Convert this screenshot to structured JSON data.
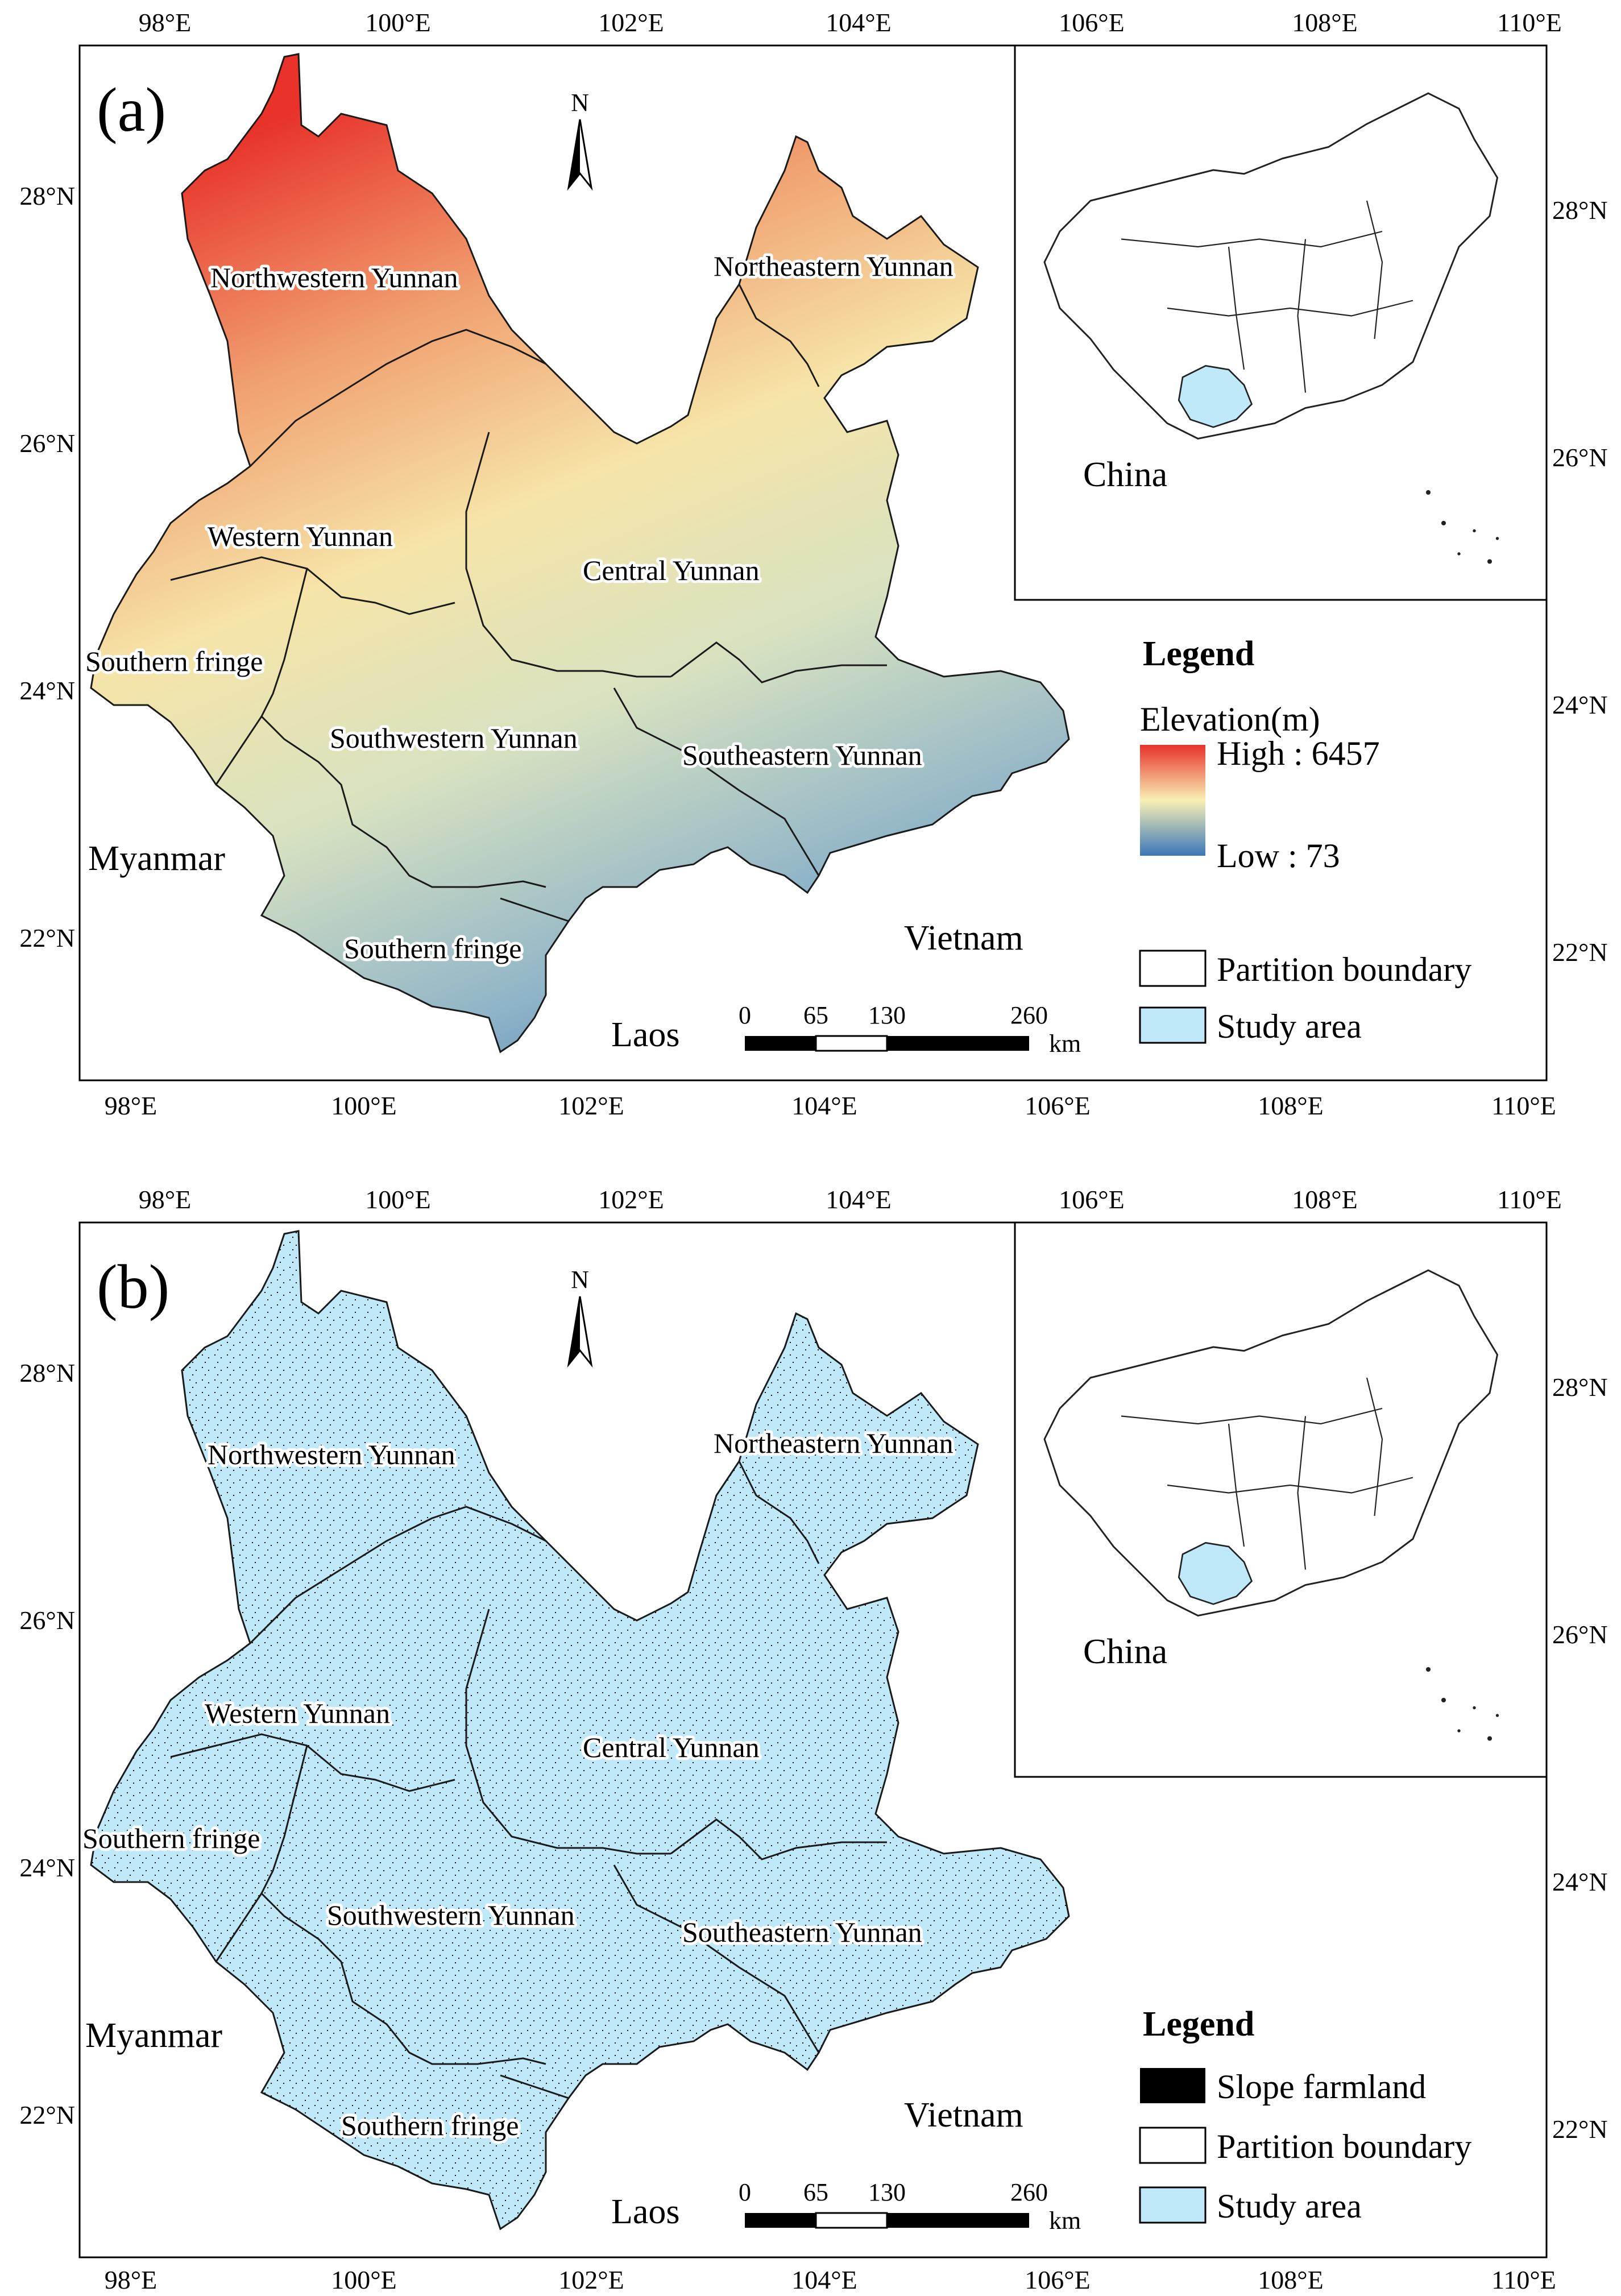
{
  "panels": [
    {
      "id": "a",
      "label": "(a)",
      "north_label": "N",
      "axis_top": [
        "98°E",
        "100°E",
        "102°E",
        "104°E",
        "106°E",
        "108°E",
        "110°E"
      ],
      "axis_bottom": [
        "98°E",
        "100°E",
        "102°E",
        "104°E",
        "106°E",
        "108°E",
        "110°E"
      ],
      "axis_left": [
        "28°N",
        "26°N",
        "24°N",
        "22°N"
      ],
      "axis_right": [
        "28°N",
        "26°N",
        "24°N",
        "22°N"
      ],
      "regions": {
        "northwestern": "Northwestern Yunnan",
        "northeastern": "Northeastern Yunnan",
        "western": "Western Yunnan",
        "central": "Central Yunnan",
        "southern_fringe_w": "Southern fringe",
        "southwestern": "Southwestern Yunnan",
        "southeastern": "Southeastern Yunnan",
        "southern_fringe_s": "Southern fringe"
      },
      "countries": {
        "myanmar": "Myanmar",
        "vietnam": "Vietnam",
        "laos": "Laos"
      },
      "inset_label": "China",
      "scale": {
        "ticks": [
          "0",
          "65",
          "130",
          "260"
        ],
        "unit": "km"
      },
      "legend": {
        "title": "Legend",
        "ramp_title": "Elevation(m)",
        "ramp_high": "High : 6457",
        "ramp_low": "Low : 73",
        "items": [
          {
            "label": "Partition boundary",
            "color": "#ffffff"
          },
          {
            "label": "Study area",
            "color": "#bfe8f8"
          }
        ]
      }
    },
    {
      "id": "b",
      "label": "(b)",
      "north_label": "N",
      "axis_top": [
        "98°E",
        "100°E",
        "102°E",
        "104°E",
        "106°E",
        "108°E",
        "110°E"
      ],
      "axis_bottom": [
        "98°E",
        "100°E",
        "102°E",
        "104°E",
        "106°E",
        "108°E",
        "110°E"
      ],
      "axis_left": [
        "28°N",
        "26°N",
        "24°N",
        "22°N"
      ],
      "axis_right": [
        "28°N",
        "26°N",
        "24°N",
        "22°N"
      ],
      "regions": {
        "northwestern": "Northwestern Yunnan",
        "northeastern": "Northeastern Yunnan",
        "western": "Western Yunnan",
        "central": "Central Yunnan",
        "southern_fringe_w": "Southern fringe",
        "southwestern": "Southwestern Yunnan",
        "southeastern": "Southeastern Yunnan",
        "southern_fringe_s": "Southern fringe"
      },
      "countries": {
        "myanmar": "Myanmar",
        "vietnam": "Vietnam",
        "laos": "Laos"
      },
      "inset_label": "China",
      "scale": {
        "ticks": [
          "0",
          "65",
          "130",
          "260"
        ],
        "unit": "km"
      },
      "legend": {
        "title": "Legend",
        "items": [
          {
            "label": "Slope farmland",
            "color": "#000000"
          },
          {
            "label": "Partition boundary",
            "color": "#ffffff"
          },
          {
            "label": "Study area",
            "color": "#bfe8f8"
          }
        ]
      }
    }
  ],
  "colors": {
    "elev_high": "#e8322a",
    "elev_mid": "#f8f0b4",
    "elev_low": "#3b78b8",
    "study_area": "#bfe8f8",
    "boundary": "#1a1a1a"
  }
}
